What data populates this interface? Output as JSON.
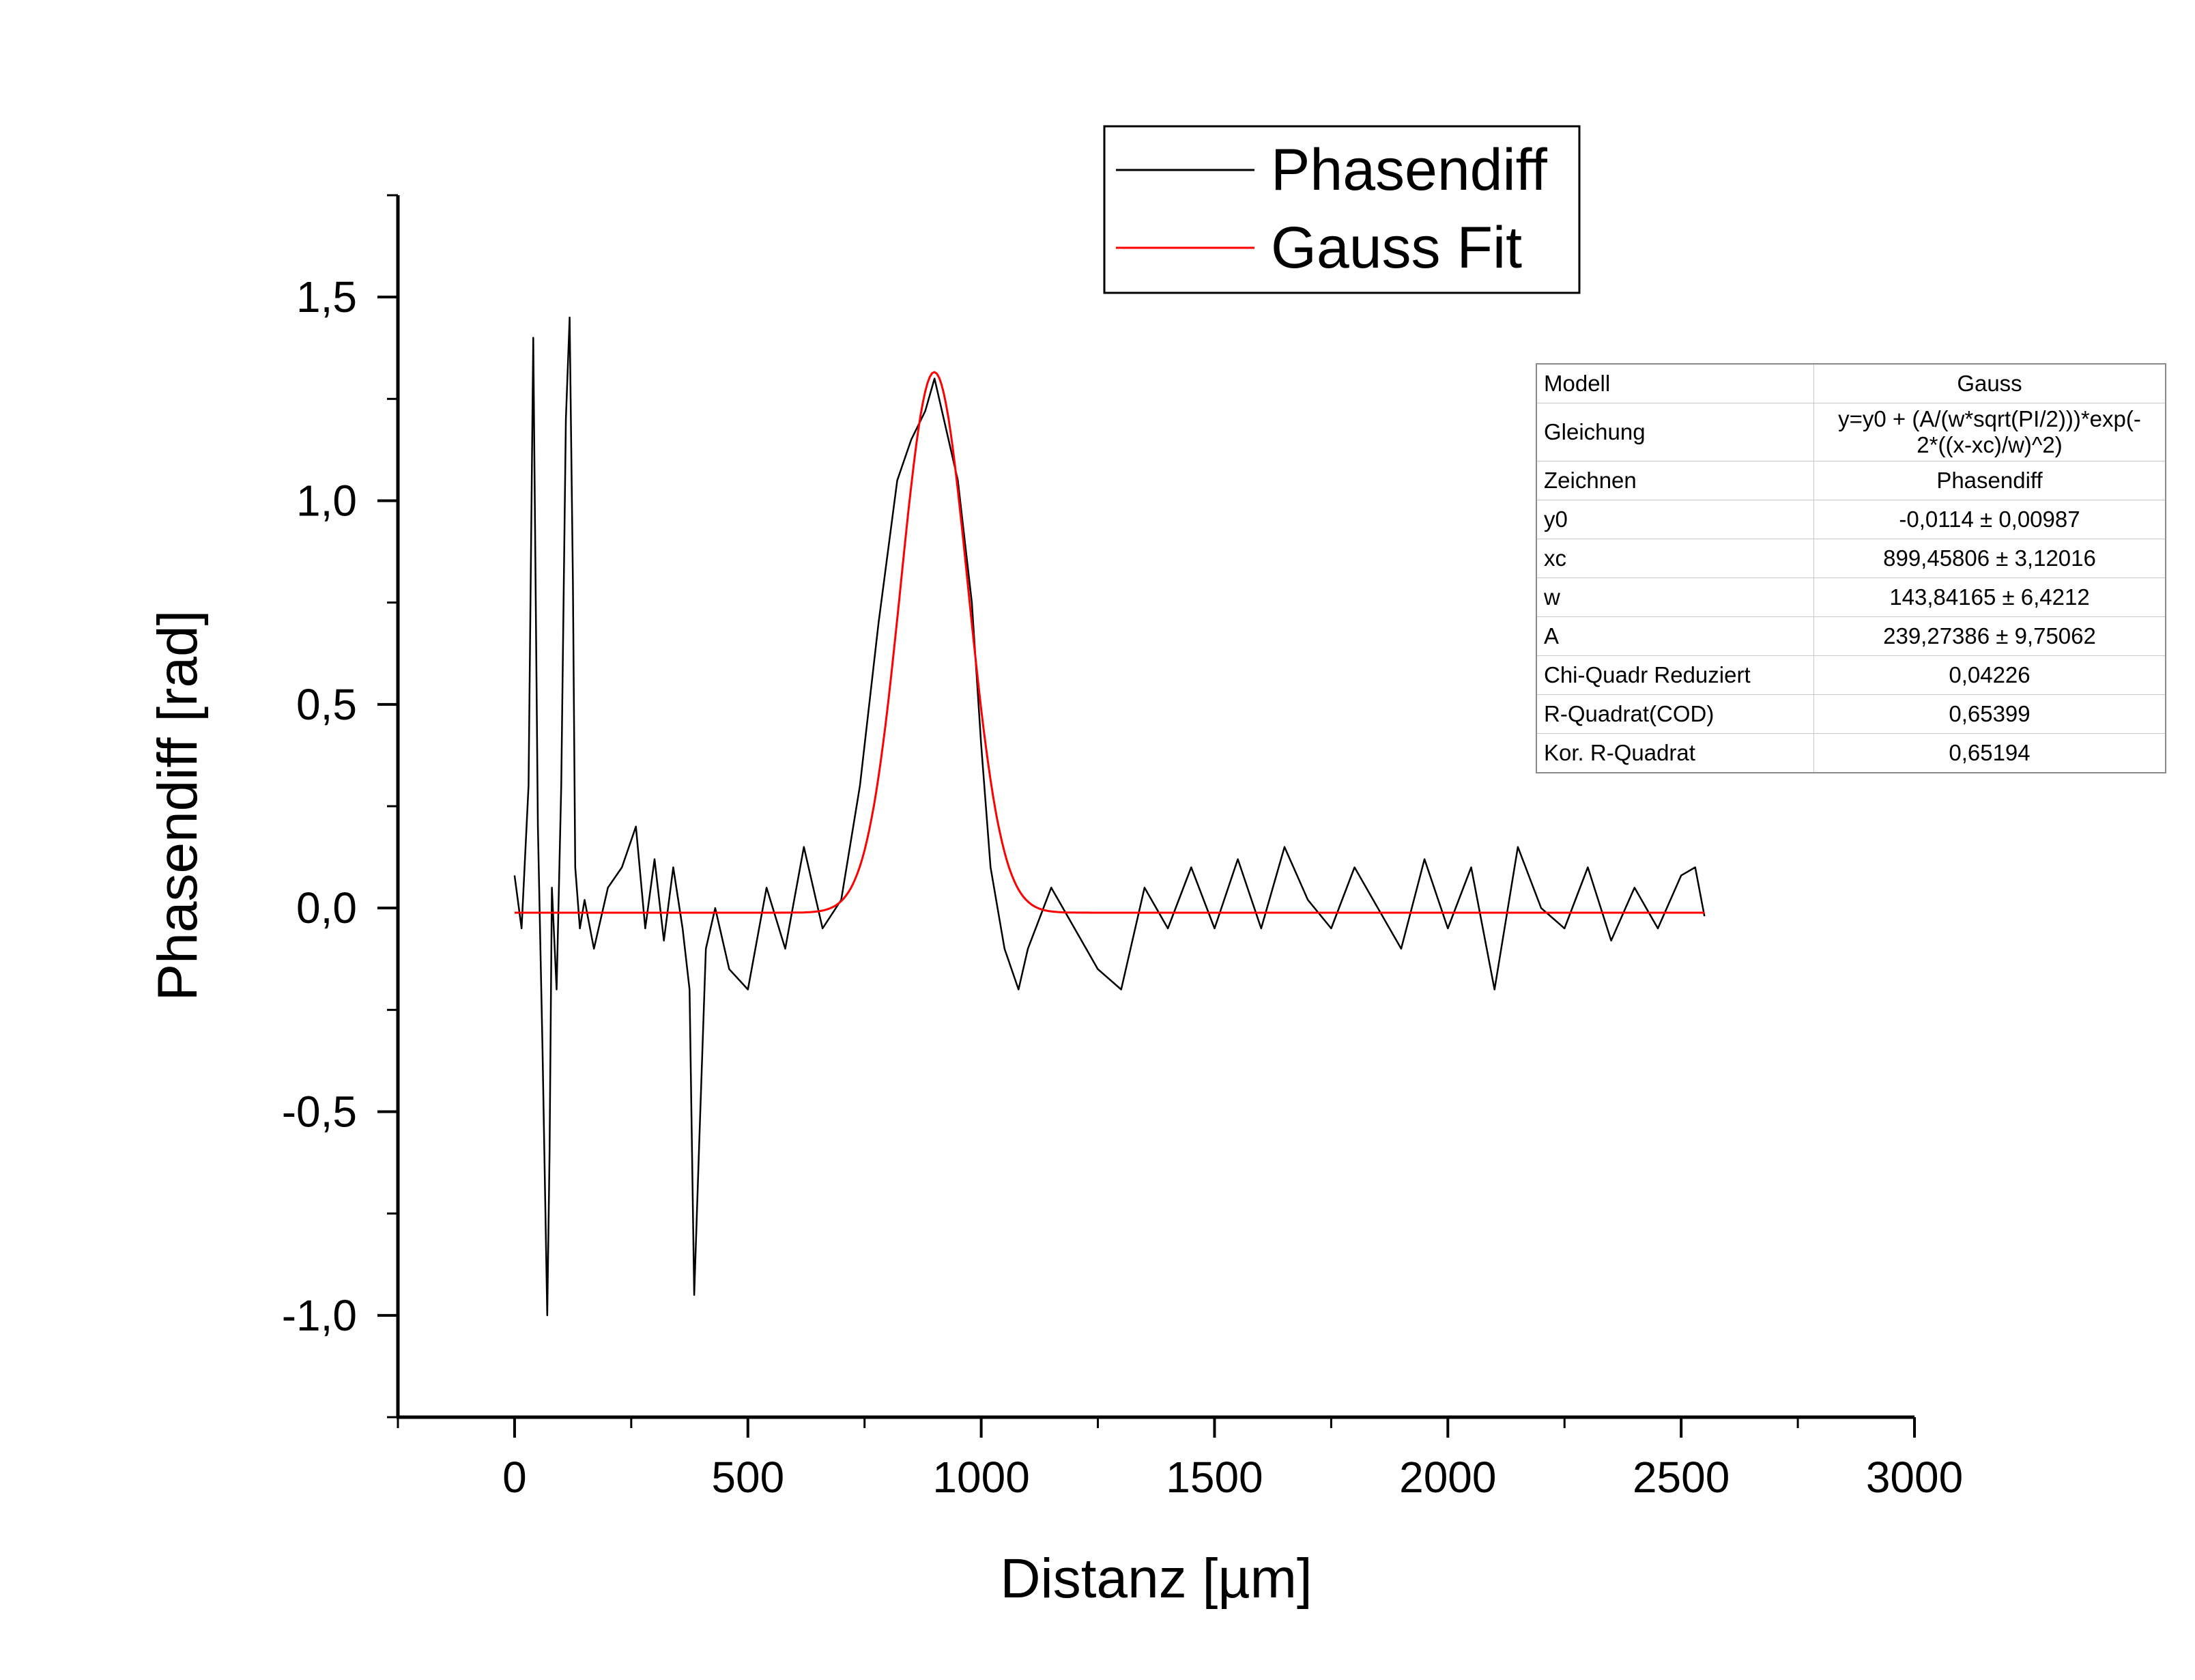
{
  "chart_data": {
    "type": "line",
    "xlabel": "Distanz [µm]",
    "ylabel": "Phasendiff [rad]",
    "xlim": [
      -250,
      3000
    ],
    "ylim": [
      -1.25,
      1.75
    ],
    "x_ticks": [
      "0",
      "500",
      "1000",
      "1500",
      "2000",
      "2500",
      "3000"
    ],
    "y_ticks": [
      "-1,0",
      "-0,5",
      "0,0",
      "0,5",
      "1,0",
      "1,5"
    ],
    "legend": {
      "position": "top-center",
      "entries": [
        "Phasendiff",
        "Gauss Fit"
      ]
    },
    "series": [
      {
        "name": "Phasendiff",
        "color": "#000000",
        "x": [
          0,
          15,
          30,
          40,
          50,
          60,
          70,
          75,
          80,
          90,
          100,
          110,
          118,
          125,
          130,
          140,
          150,
          170,
          200,
          230,
          260,
          280,
          300,
          320,
          340,
          360,
          375,
          385,
          395,
          410,
          430,
          460,
          500,
          540,
          580,
          620,
          660,
          700,
          740,
          780,
          820,
          850,
          880,
          900,
          920,
          950,
          980,
          1000,
          1020,
          1050,
          1080,
          1100,
          1150,
          1200,
          1250,
          1300,
          1350,
          1400,
          1450,
          1500,
          1550,
          1600,
          1650,
          1700,
          1750,
          1800,
          1850,
          1900,
          1950,
          2000,
          2050,
          2100,
          2150,
          2200,
          2250,
          2300,
          2350,
          2400,
          2450,
          2500,
          2530,
          2550
        ],
        "y": [
          0.08,
          -0.05,
          0.3,
          1.4,
          0.2,
          -0.35,
          -1.0,
          -0.6,
          0.05,
          -0.2,
          0.3,
          1.2,
          1.45,
          0.8,
          0.1,
          -0.05,
          0.02,
          -0.1,
          0.05,
          0.1,
          0.2,
          -0.05,
          0.12,
          -0.08,
          0.1,
          -0.05,
          -0.2,
          -0.95,
          -0.6,
          -0.1,
          0.0,
          -0.15,
          -0.2,
          0.05,
          -0.1,
          0.15,
          -0.05,
          0.02,
          0.3,
          0.7,
          1.05,
          1.15,
          1.22,
          1.3,
          1.2,
          1.05,
          0.75,
          0.4,
          0.1,
          -0.1,
          -0.2,
          -0.1,
          0.05,
          -0.05,
          -0.15,
          -0.2,
          0.05,
          -0.05,
          0.1,
          -0.05,
          0.12,
          -0.05,
          0.15,
          0.02,
          -0.05,
          0.1,
          0.0,
          -0.1,
          0.12,
          -0.05,
          0.1,
          -0.2,
          0.15,
          0.0,
          -0.05,
          0.1,
          -0.08,
          0.05,
          -0.05,
          0.08,
          0.1,
          -0.02
        ]
      },
      {
        "name": "Gauss Fit",
        "color": "#ff0000",
        "model": {
          "y0": -0.0114,
          "xc": 899.45806,
          "w": 143.84165,
          "A": 239.27386
        },
        "x_range": [
          0,
          2550
        ]
      }
    ]
  },
  "fit_table": [
    {
      "key": "Modell",
      "value": "Gauss"
    },
    {
      "key": "Gleichung",
      "value_lines": [
        "y=y0 + (A/(w*sqrt(PI/2)))*exp(-",
        "2*((x-xc)/w)^2)"
      ]
    },
    {
      "key": "Zeichnen",
      "value": "Phasendiff"
    },
    {
      "key": "y0",
      "value": "-0,0114 ± 0,00987"
    },
    {
      "key": "xc",
      "value": "899,45806 ± 3,12016"
    },
    {
      "key": "w",
      "value": "143,84165 ± 6,4212"
    },
    {
      "key": "A",
      "value": "239,27386 ± 9,75062"
    },
    {
      "key": "Chi-Quadr Reduziert",
      "value": "0,04226"
    },
    {
      "key": "R-Quadrat(COD)",
      "value": "0,65399"
    },
    {
      "key": "Kor. R-Quadrat",
      "value": "0,65194"
    }
  ]
}
